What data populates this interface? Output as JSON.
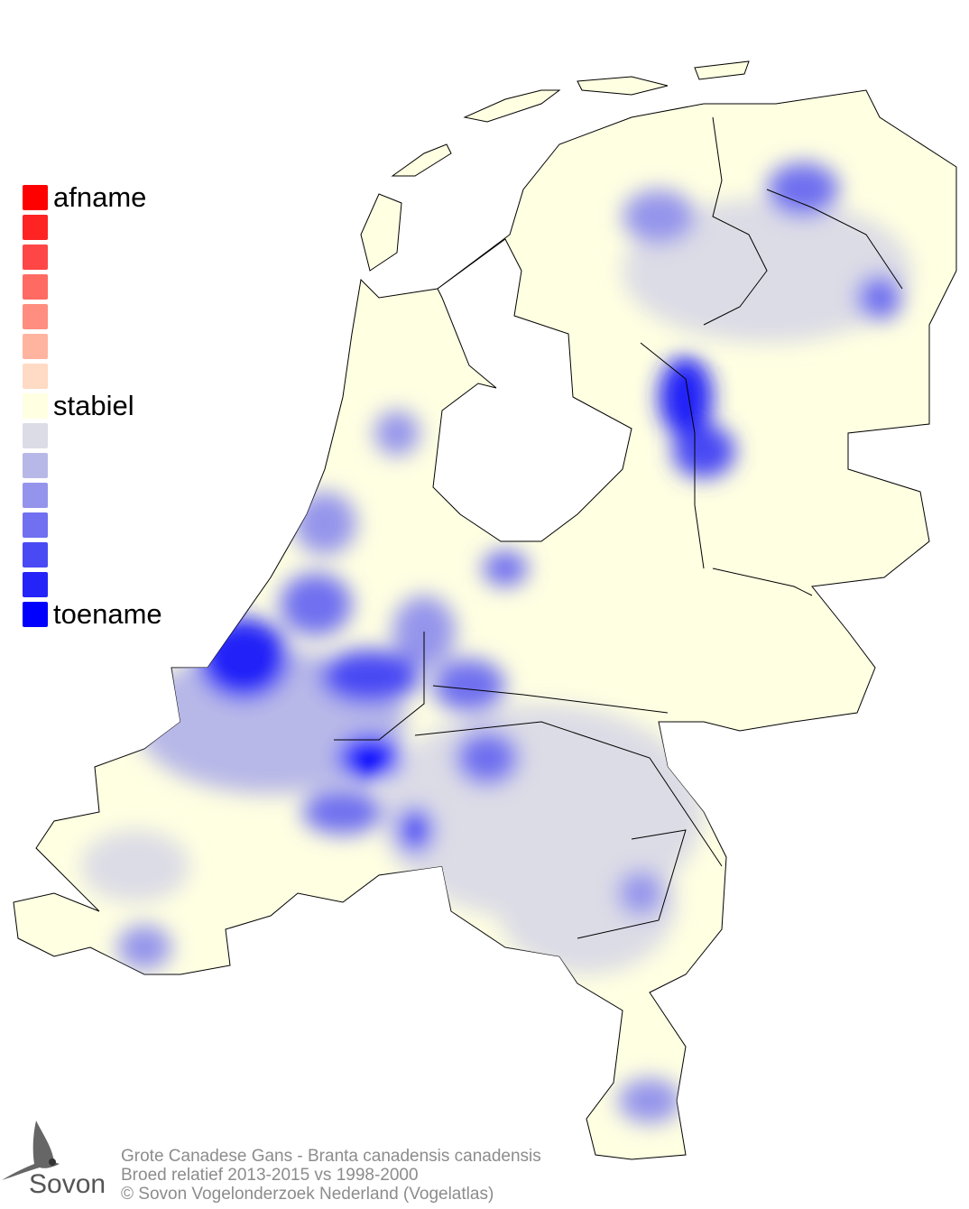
{
  "legend": {
    "labels": {
      "top": "afname",
      "middle": "stabiel",
      "bottom": "toename"
    },
    "colors": [
      "#ff0000",
      "#ff2424",
      "#ff4646",
      "#ff6a62",
      "#ff8e80",
      "#ffb4a0",
      "#ffdac4",
      "#ffffe2",
      "#dcdce6",
      "#b8b8e8",
      "#9494ec",
      "#7070f0",
      "#4a4af4",
      "#2424f8",
      "#0000ff"
    ]
  },
  "footer": {
    "line1": "Grote Canadese Gans - Branta canadensis canadensis",
    "line2": "Broed relatief 2013-2015 vs 1998-2000",
    "line3": "© Sovon Vogelonderzoek Nederland (Vogelatlas)"
  },
  "logo": {
    "text": "Sovon",
    "icon": "swallow-icon"
  },
  "map": {
    "region": "Netherlands",
    "base_color": "#ffffe2",
    "water_color": "#ffffff"
  }
}
